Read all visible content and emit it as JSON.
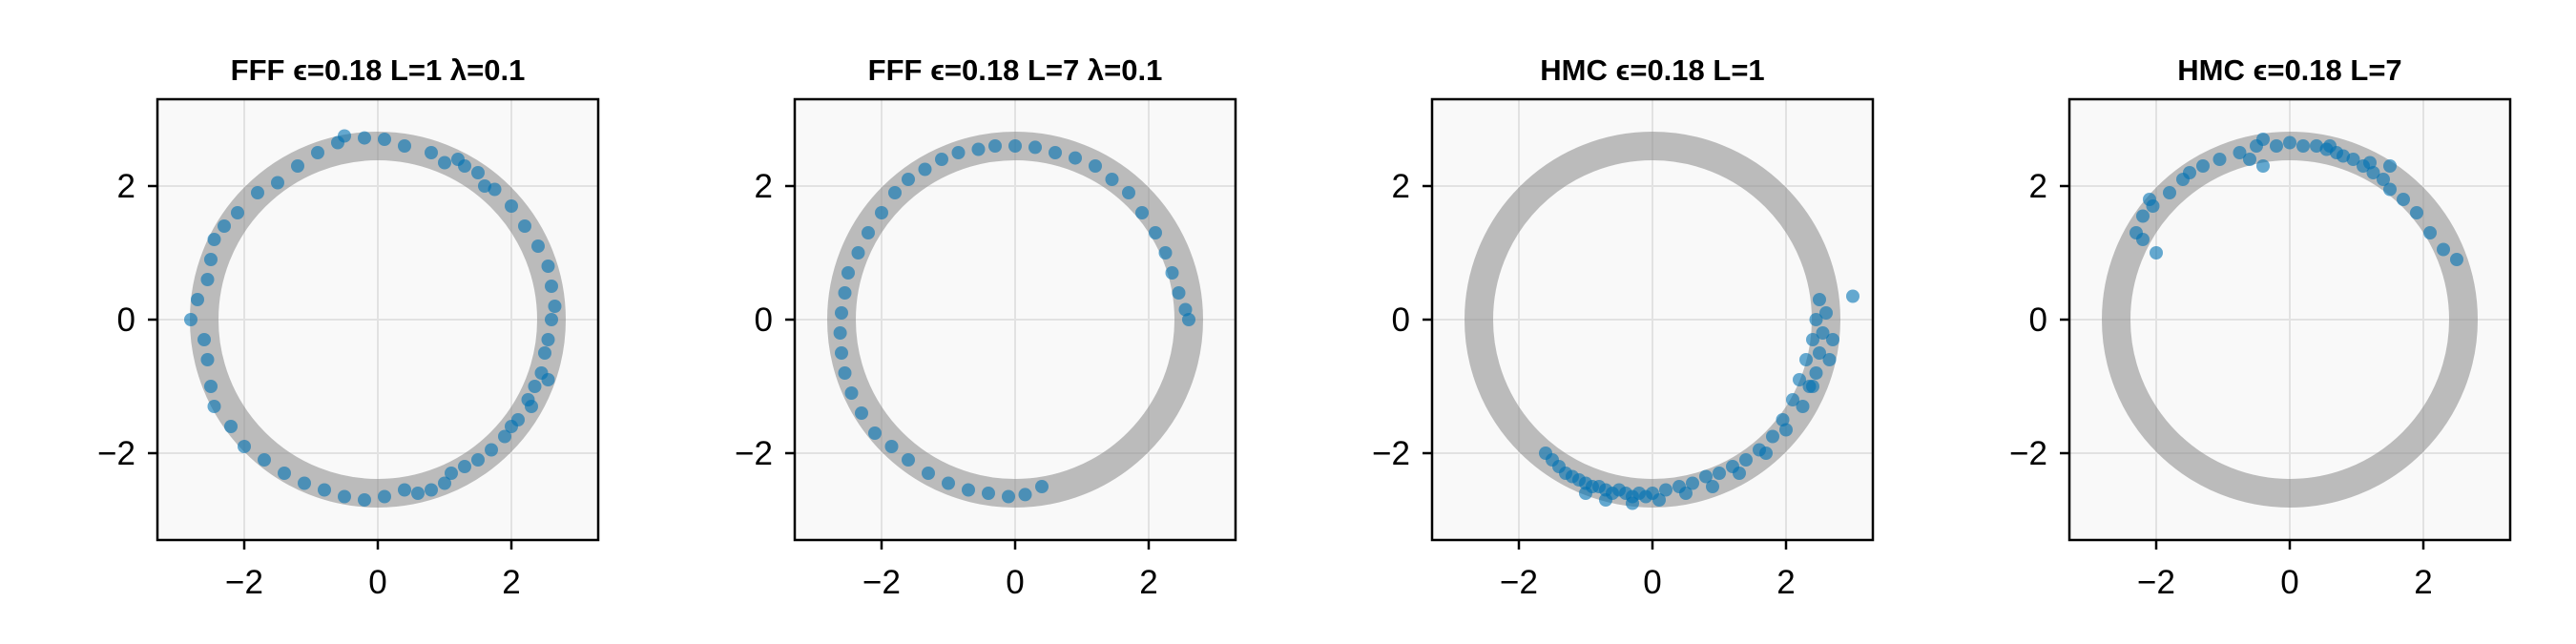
{
  "colors": {
    "accent": "#0072B2",
    "ring": "#888888",
    "panel_bg": "#f9f9f9",
    "grid": "#e2e2e2"
  },
  "chart_data": [
    {
      "type": "scatter",
      "title": "FFF ϵ=0.18 L=1 λ=0.1",
      "xlim": [
        -3.3,
        3.3
      ],
      "ylim": [
        -3.3,
        3.3
      ],
      "xticks": [
        "−2",
        "0",
        "2"
      ],
      "yticks": [
        "−2",
        "0",
        "2"
      ],
      "grid": true,
      "background": "ring density, radius 2.6",
      "points": [
        [
          -0.5,
          2.75
        ],
        [
          -0.2,
          2.72
        ],
        [
          0.1,
          2.7
        ],
        [
          0.4,
          2.6
        ],
        [
          0.8,
          2.5
        ],
        [
          1.0,
          2.35
        ],
        [
          1.2,
          2.4
        ],
        [
          1.5,
          2.2
        ],
        [
          1.75,
          1.95
        ],
        [
          1.6,
          2.0
        ],
        [
          2.0,
          1.7
        ],
        [
          2.2,
          1.4
        ],
        [
          2.4,
          1.1
        ],
        [
          2.55,
          0.8
        ],
        [
          2.6,
          0.5
        ],
        [
          2.65,
          0.2
        ],
        [
          2.6,
          0.0
        ],
        [
          2.55,
          -0.3
        ],
        [
          2.5,
          -0.5
        ],
        [
          2.45,
          -0.8
        ],
        [
          2.35,
          -1.0
        ],
        [
          2.25,
          -1.2
        ],
        [
          2.1,
          -1.5
        ],
        [
          1.9,
          -1.75
        ],
        [
          1.7,
          -1.95
        ],
        [
          1.5,
          -2.1
        ],
        [
          1.3,
          -2.2
        ],
        [
          1.1,
          -2.3
        ],
        [
          1.0,
          -2.45
        ],
        [
          0.8,
          -2.55
        ],
        [
          0.6,
          -2.6
        ],
        [
          0.4,
          -2.55
        ],
        [
          0.1,
          -2.65
        ],
        [
          -0.2,
          -2.7
        ],
        [
          -0.5,
          -2.65
        ],
        [
          -0.8,
          -2.55
        ],
        [
          -1.1,
          -2.45
        ],
        [
          -1.4,
          -2.3
        ],
        [
          -1.7,
          -2.1
        ],
        [
          -2.0,
          -1.9
        ],
        [
          -2.2,
          -1.6
        ],
        [
          -2.45,
          -1.3
        ],
        [
          -2.5,
          -1.0
        ],
        [
          -2.55,
          -0.6
        ],
        [
          -2.6,
          -0.3
        ],
        [
          -2.8,
          0.0
        ],
        [
          -2.7,
          0.3
        ],
        [
          -2.55,
          0.6
        ],
        [
          -2.5,
          0.9
        ],
        [
          -2.45,
          1.2
        ],
        [
          -2.3,
          1.4
        ],
        [
          -2.1,
          1.6
        ],
        [
          -1.8,
          1.9
        ],
        [
          -1.5,
          2.05
        ],
        [
          -1.2,
          2.3
        ],
        [
          -0.9,
          2.5
        ],
        [
          -0.6,
          2.65
        ],
        [
          1.3,
          2.3
        ],
        [
          2.55,
          -0.9
        ],
        [
          2.3,
          -1.3
        ],
        [
          2.0,
          -1.6
        ]
      ],
      "point_color": "#0072B2"
    },
    {
      "type": "scatter",
      "title": "FFF ϵ=0.18 L=7 λ=0.1",
      "xlim": [
        -3.3,
        3.3
      ],
      "ylim": [
        -3.3,
        3.3
      ],
      "xticks": [
        "−2",
        "0",
        "2"
      ],
      "yticks": [
        "−2",
        "0",
        "2"
      ],
      "grid": true,
      "background": "ring density, radius 2.6",
      "points": [
        [
          -1.8,
          1.9
        ],
        [
          -1.6,
          2.1
        ],
        [
          -1.35,
          2.25
        ],
        [
          -1.1,
          2.4
        ],
        [
          -0.85,
          2.5
        ],
        [
          -0.55,
          2.55
        ],
        [
          -0.3,
          2.6
        ],
        [
          0.0,
          2.6
        ],
        [
          0.3,
          2.58
        ],
        [
          0.6,
          2.5
        ],
        [
          0.9,
          2.42
        ],
        [
          1.2,
          2.3
        ],
        [
          1.45,
          2.1
        ],
        [
          1.7,
          1.9
        ],
        [
          1.9,
          1.6
        ],
        [
          2.1,
          1.3
        ],
        [
          2.25,
          1.0
        ],
        [
          2.35,
          0.7
        ],
        [
          2.45,
          0.4
        ],
        [
          2.55,
          0.15
        ],
        [
          2.6,
          0.0
        ],
        [
          -2.0,
          1.6
        ],
        [
          -2.2,
          1.3
        ],
        [
          -2.35,
          1.0
        ],
        [
          -2.5,
          0.7
        ],
        [
          -2.55,
          0.4
        ],
        [
          -2.6,
          0.1
        ],
        [
          -2.62,
          -0.2
        ],
        [
          -2.6,
          -0.5
        ],
        [
          -2.55,
          -0.8
        ],
        [
          -2.45,
          -1.1
        ],
        [
          -2.3,
          -1.4
        ],
        [
          -2.1,
          -1.7
        ],
        [
          -1.85,
          -1.9
        ],
        [
          -1.6,
          -2.1
        ],
        [
          -1.3,
          -2.3
        ],
        [
          -1.0,
          -2.45
        ],
        [
          -0.7,
          -2.55
        ],
        [
          -0.4,
          -2.6
        ],
        [
          -0.1,
          -2.65
        ],
        [
          0.15,
          -2.62
        ],
        [
          0.4,
          -2.5
        ]
      ],
      "point_color": "#0072B2"
    },
    {
      "type": "scatter",
      "title": "HMC ϵ=0.18 L=1",
      "xlim": [
        -3.3,
        3.3
      ],
      "ylim": [
        -3.3,
        3.3
      ],
      "xticks": [
        "−2",
        "0",
        "2"
      ],
      "yticks": [
        "−2",
        "0",
        "2"
      ],
      "grid": true,
      "background": "ring density, radius 2.6",
      "points": [
        [
          -1.6,
          -2.0
        ],
        [
          -1.5,
          -2.1
        ],
        [
          -1.4,
          -2.2
        ],
        [
          -1.3,
          -2.3
        ],
        [
          -1.2,
          -2.35
        ],
        [
          -1.1,
          -2.4
        ],
        [
          -1.0,
          -2.45
        ],
        [
          -0.9,
          -2.5
        ],
        [
          -0.8,
          -2.5
        ],
        [
          -0.7,
          -2.55
        ],
        [
          -0.6,
          -2.6
        ],
        [
          -0.5,
          -2.55
        ],
        [
          -0.4,
          -2.6
        ],
        [
          -0.3,
          -2.65
        ],
        [
          -0.2,
          -2.6
        ],
        [
          -0.1,
          -2.65
        ],
        [
          0.0,
          -2.6
        ],
        [
          0.2,
          -2.55
        ],
        [
          0.4,
          -2.5
        ],
        [
          0.6,
          -2.45
        ],
        [
          0.8,
          -2.35
        ],
        [
          1.0,
          -2.3
        ],
        [
          1.2,
          -2.2
        ],
        [
          1.4,
          -2.1
        ],
        [
          1.6,
          -1.95
        ],
        [
          1.8,
          -1.75
        ],
        [
          1.95,
          -1.5
        ],
        [
          2.1,
          -1.2
        ],
        [
          2.2,
          -0.9
        ],
        [
          2.3,
          -0.6
        ],
        [
          2.4,
          -0.3
        ],
        [
          2.45,
          0.0
        ],
        [
          2.5,
          0.3
        ],
        [
          2.6,
          0.1
        ],
        [
          2.55,
          -0.2
        ],
        [
          2.5,
          -0.5
        ],
        [
          2.45,
          -0.8
        ],
        [
          2.35,
          -1.0
        ],
        [
          -1.0,
          -2.6
        ],
        [
          -0.7,
          -2.7
        ],
        [
          -0.3,
          -2.75
        ],
        [
          0.1,
          -2.7
        ],
        [
          0.5,
          -2.6
        ],
        [
          0.9,
          -2.5
        ],
        [
          1.3,
          -2.3
        ],
        [
          1.7,
          -2.0
        ],
        [
          2.0,
          -1.65
        ],
        [
          2.25,
          -1.3
        ],
        [
          2.4,
          -1.0
        ],
        [
          3.0,
          0.35
        ],
        [
          2.7,
          -0.3
        ],
        [
          2.65,
          -0.6
        ]
      ],
      "point_color": "#0072B2"
    },
    {
      "type": "scatter",
      "title": "HMC ϵ=0.18 L=7",
      "xlim": [
        -3.3,
        3.3
      ],
      "ylim": [
        -3.3,
        3.3
      ],
      "xticks": [
        "−2",
        "0",
        "2"
      ],
      "yticks": [
        "−2",
        "0",
        "2"
      ],
      "grid": true,
      "background": "ring density, radius 2.6",
      "points": [
        [
          -2.3,
          1.3
        ],
        [
          -2.2,
          1.55
        ],
        [
          -2.1,
          1.8
        ],
        [
          -2.0,
          1.0
        ],
        [
          -2.05,
          1.7
        ],
        [
          -1.8,
          1.9
        ],
        [
          -1.6,
          2.1
        ],
        [
          -1.5,
          2.2
        ],
        [
          -1.3,
          2.3
        ],
        [
          -1.05,
          2.4
        ],
        [
          -0.75,
          2.5
        ],
        [
          -0.5,
          2.6
        ],
        [
          -0.4,
          2.7
        ],
        [
          -0.2,
          2.6
        ],
        [
          0.0,
          2.65
        ],
        [
          0.2,
          2.6
        ],
        [
          0.4,
          2.6
        ],
        [
          0.55,
          2.55
        ],
        [
          0.7,
          2.5
        ],
        [
          0.8,
          2.45
        ],
        [
          0.95,
          2.4
        ],
        [
          1.1,
          2.3
        ],
        [
          1.25,
          2.2
        ],
        [
          1.4,
          2.1
        ],
        [
          1.5,
          1.95
        ],
        [
          1.7,
          1.8
        ],
        [
          1.9,
          1.6
        ],
        [
          2.1,
          1.3
        ],
        [
          2.3,
          1.05
        ],
        [
          2.5,
          0.9
        ],
        [
          -0.6,
          2.4
        ],
        [
          -0.4,
          2.3
        ],
        [
          -2.2,
          1.2
        ],
        [
          0.6,
          2.6
        ],
        [
          1.2,
          2.35
        ],
        [
          1.5,
          2.3
        ]
      ],
      "point_color": "#0072B2"
    }
  ]
}
